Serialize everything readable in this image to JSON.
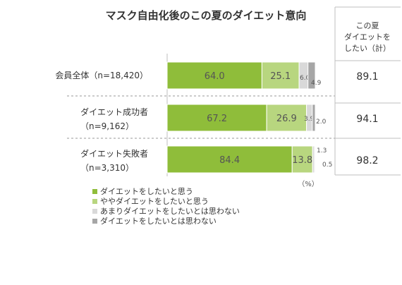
{
  "chart_data": {
    "type": "bar",
    "orientation": "horizontal",
    "stacked": true,
    "title": "マスク自由化後のこの夏のダイエット意向",
    "categories": [
      [
        "会員全体（n=18,420）"
      ],
      [
        "ダイエット成功者",
        "（n=9,162）"
      ],
      [
        "ダイエット失敗者",
        "（n=3,310）"
      ]
    ],
    "series": [
      {
        "name": "ダイエットをしたいと思う",
        "color": "#8fbd3a",
        "values": [
          64.0,
          67.2,
          84.4
        ],
        "labels": [
          "64.0",
          "67.2",
          "84.4"
        ]
      },
      {
        "name": "ややダイエットをしたいと思う",
        "color": "#b8d67f",
        "values": [
          25.1,
          26.9,
          13.8
        ],
        "labels": [
          "25.1",
          "26.9",
          "13.8"
        ]
      },
      {
        "name": "あまりダイエットをしたいとは思わない",
        "color": "#d9d9d9",
        "values": [
          6.0,
          3.9,
          1.3
        ],
        "labels": [
          "6.0",
          "3.9",
          "1.3"
        ]
      },
      {
        "name": "ダイエットをしたいとは思わない",
        "color": "#a6a6a6",
        "values": [
          4.9,
          2.0,
          0.5
        ],
        "labels": [
          "4.9",
          "2.0",
          "0.5"
        ]
      }
    ],
    "xlim": [
      0,
      100
    ],
    "unit_label": "（%）",
    "summary_column": {
      "header": [
        "この夏",
        "ダイエットを",
        "したい（計）"
      ],
      "values": [
        "89.1",
        "94.1",
        "98.2"
      ]
    },
    "legend_position": "bottom-left"
  }
}
